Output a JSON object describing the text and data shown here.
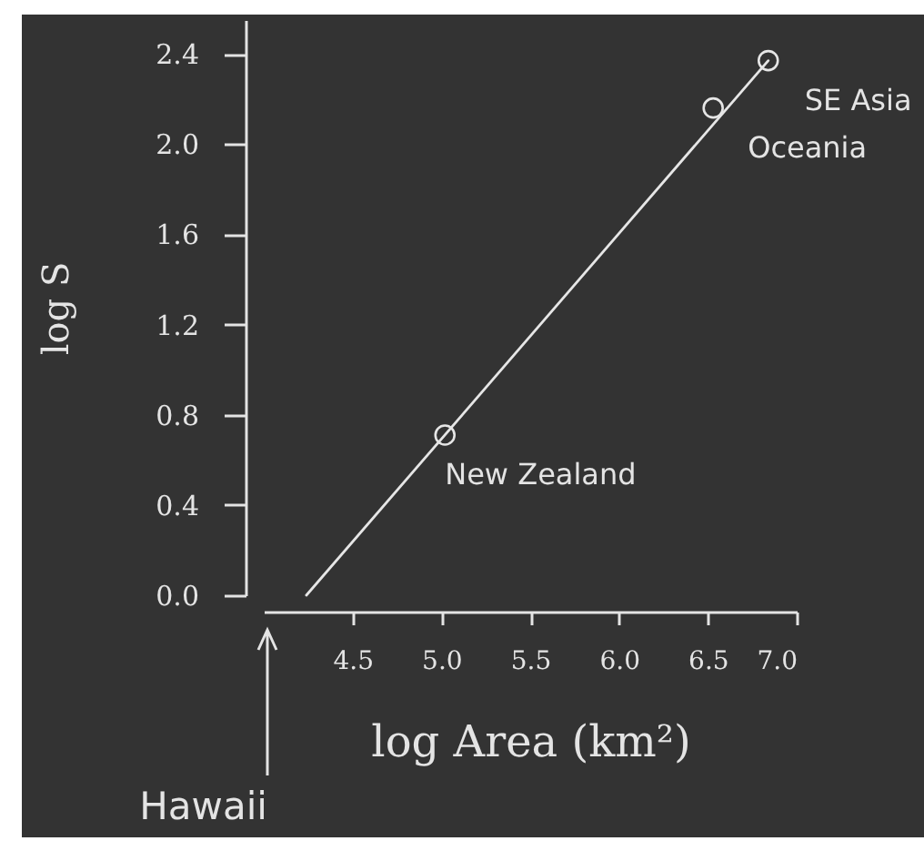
{
  "chart_data": {
    "type": "scatter",
    "xlabel": "log Area (km²)",
    "ylabel": "log S",
    "xlim": [
      4.0,
      7.0
    ],
    "xticks": [
      4.5,
      {
        "value": 5,
        "label": "5.0"
      },
      5.5,
      {
        "value": 6,
        "label": "6.0"
      },
      6.5,
      {
        "value": 7,
        "label": "7.0"
      }
    ],
    "ylim": [
      0,
      2.55
    ],
    "yticks": [
      {
        "value": 0,
        "label": "0.0"
      },
      0.4,
      0.8,
      1.2,
      1.6,
      {
        "value": 2,
        "label": "2.0"
      },
      2.4
    ],
    "series": [
      {
        "marker": "circle",
        "color": "#e6e6e6",
        "x": [
          5.02,
          6.53,
          6.84
        ],
        "values": [
          0.71,
          2.16,
          2.37
        ]
      },
      {
        "type": "line",
        "color": "#e6e6e6",
        "x": [
          4.24,
          6.84
        ],
        "values": [
          0,
          2.37
        ]
      }
    ],
    "annotations": [
      {
        "text": "New Zealand",
        "x": 5.02,
        "y": 0.71
      },
      {
        "text": "Oceania",
        "x": 6.53,
        "y": 2.16
      },
      {
        "text": "SE Asia",
        "x": 6.84,
        "y": 2.37
      },
      "Hawaii"
    ]
  }
}
